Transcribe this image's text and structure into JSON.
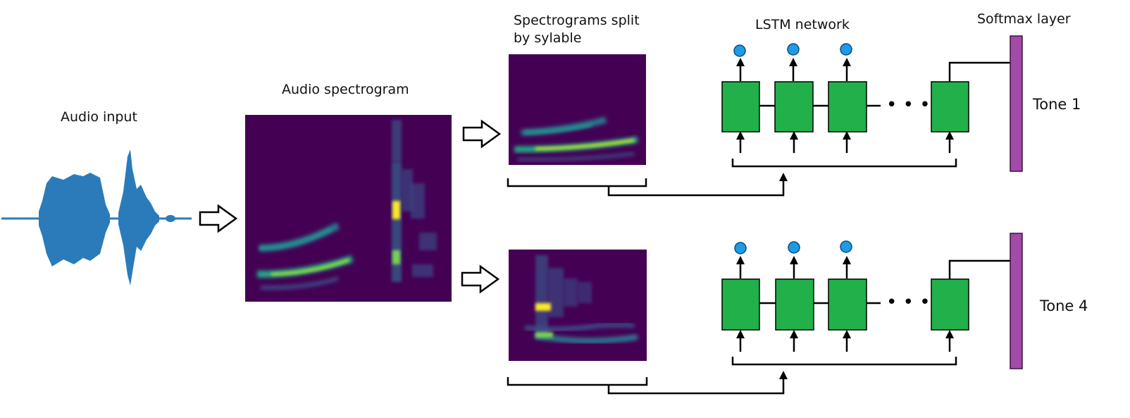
{
  "labels": {
    "audio_input": "Audio input",
    "audio_spectrogram": "Audio spectrogram",
    "split_line1": "Spectrograms split",
    "split_line2": "by sylable",
    "lstm_network": "LSTM network",
    "softmax_layer": "Softmax layer",
    "tone_top": "Tone 1",
    "tone_bottom": "Tone 4"
  },
  "colors": {
    "waveform": "#2b7bba",
    "spectrogram_bg": "#440154",
    "spectrogram_mid": "#21918c",
    "spectrogram_peak": "#fde725",
    "lstm_cell": "#22b04b",
    "output_node": "#1e9be6",
    "softmax_bar": "#a44aa8",
    "line": "#000000"
  },
  "icons": {
    "flow_arrow": "hollow-right-arrow-icon",
    "output_node": "circle-node-icon",
    "continuation": "ellipsis-icon"
  }
}
